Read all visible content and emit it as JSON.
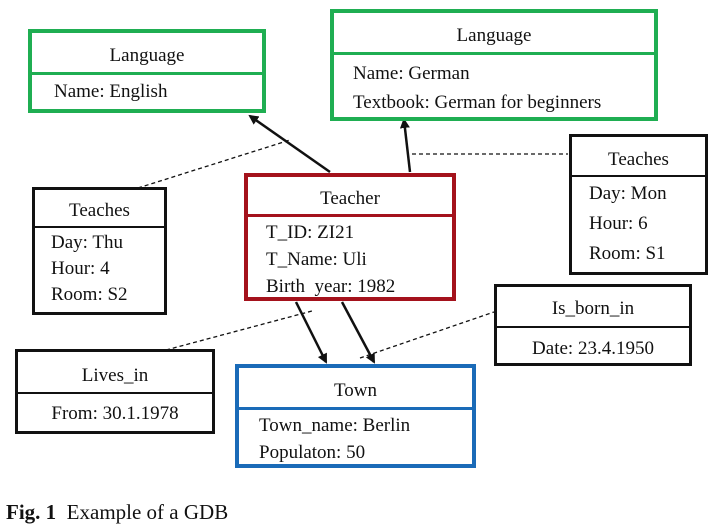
{
  "nodes": {
    "lang_en": {
      "title": "Language",
      "lines": [
        "Name: English"
      ]
    },
    "lang_de": {
      "title": "Language",
      "lines": [
        "Name: German",
        "Textbook: German for beginners"
      ]
    },
    "teacher": {
      "title": "Teacher",
      "lines": [
        "T_ID: ZI21",
        "T_Name: Uli",
        "Birth  year: 1982"
      ]
    },
    "teaches_left": {
      "title": "Teaches",
      "lines": [
        "Day: Thu",
        "Hour: 4",
        "Room: S2"
      ]
    },
    "teaches_right": {
      "title": "Teaches",
      "lines": [
        "Day: Mon",
        "Hour: 6",
        "Room: S1"
      ]
    },
    "is_born_in": {
      "title": "Is_born_in",
      "lines": [
        "Date: 23.4.1950"
      ]
    },
    "lives_in": {
      "title": "Lives_in",
      "lines": [
        "From: 30.1.1978"
      ]
    },
    "town": {
      "title": "Town",
      "lines": [
        "Town_name: Berlin",
        "Populaton: 50"
      ]
    }
  },
  "caption": {
    "label": "Fig. 1",
    "text": "Example of a GDB"
  },
  "colors": {
    "language": "#1fae52",
    "teacher": "#a4121c",
    "town": "#1a6bb8",
    "edge_property": "#111111"
  }
}
